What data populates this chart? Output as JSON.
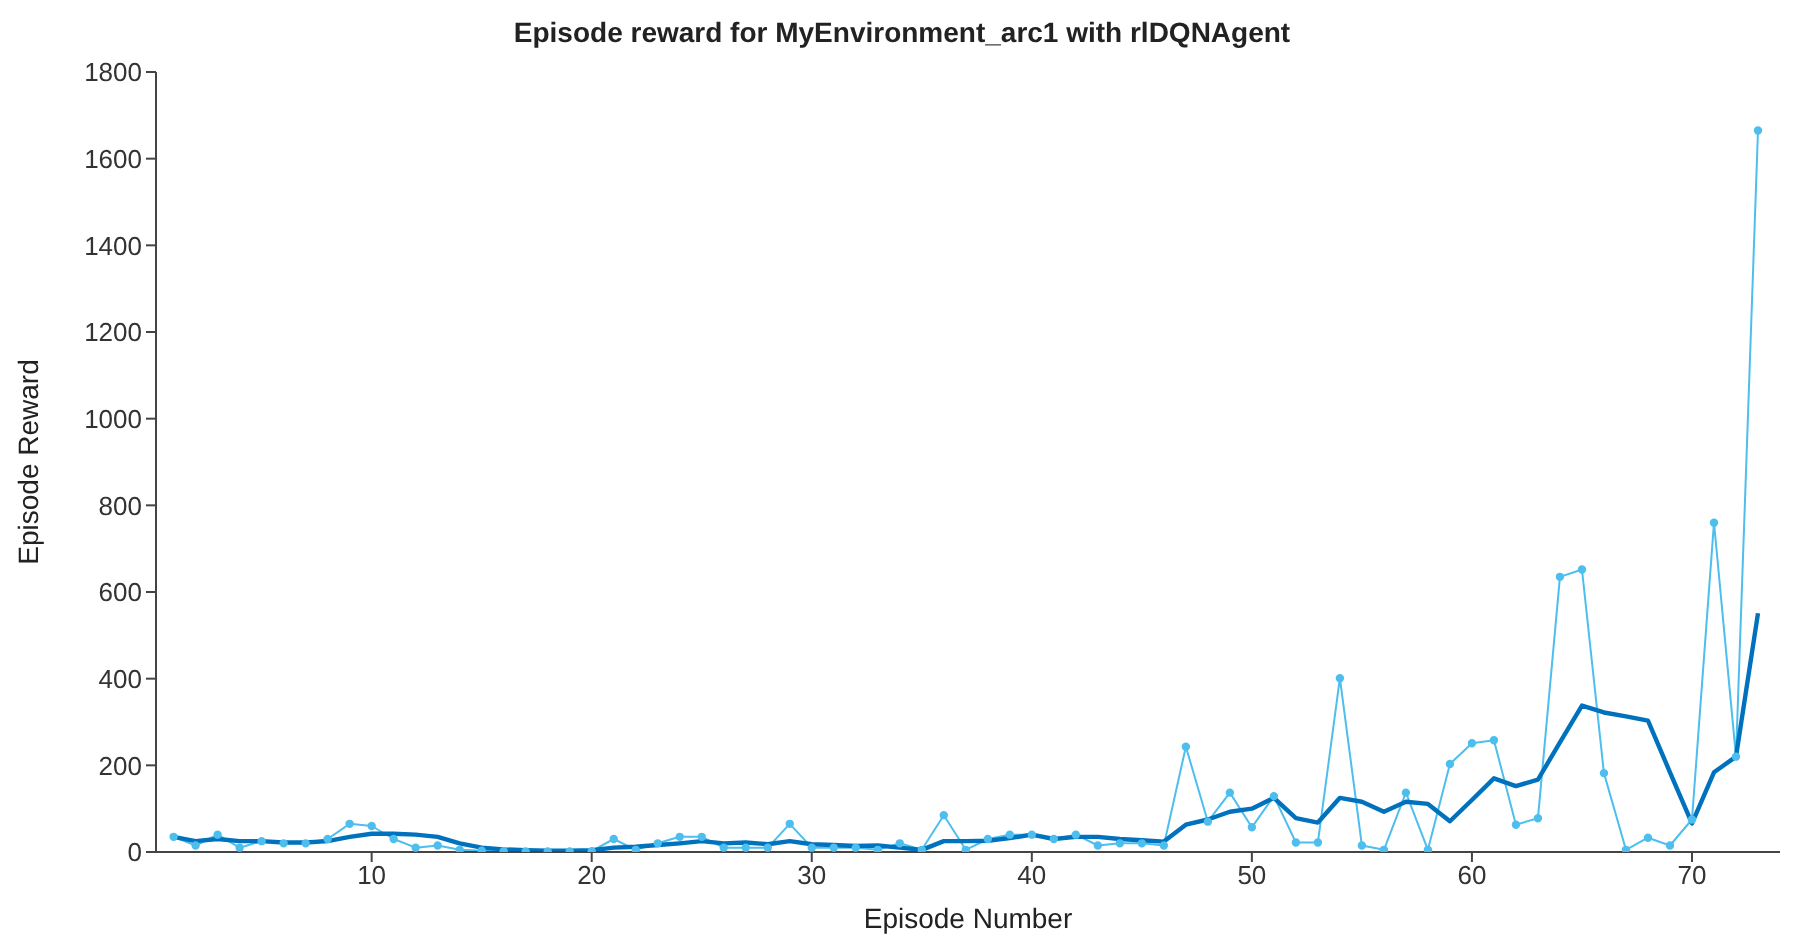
{
  "chart_data": {
    "type": "line",
    "title": "Episode reward for MyEnvironment_arc1 with rlDQNAgent",
    "xlabel": "Episode Number",
    "ylabel": "Episode Reward",
    "x": [
      1,
      2,
      3,
      4,
      5,
      6,
      7,
      8,
      9,
      10,
      11,
      12,
      13,
      14,
      15,
      16,
      17,
      18,
      19,
      20,
      21,
      22,
      23,
      24,
      25,
      26,
      27,
      28,
      29,
      30,
      31,
      32,
      33,
      34,
      35,
      36,
      37,
      38,
      39,
      40,
      41,
      42,
      43,
      44,
      45,
      46,
      47,
      48,
      49,
      50,
      51,
      52,
      53,
      54,
      55,
      56,
      57,
      58,
      59,
      60,
      61,
      62,
      63,
      64,
      65,
      66,
      67,
      68,
      69,
      70,
      71,
      72,
      73
    ],
    "series": [
      {
        "color": "#4dbeee",
        "marker": "circle",
        "values": [
          35,
          15,
          40,
          10,
          25,
          20,
          20,
          30,
          65,
          60,
          30,
          10,
          15,
          5,
          3,
          2,
          1,
          1,
          1,
          2,
          30,
          5,
          20,
          35,
          35,
          10,
          10,
          10,
          65,
          10,
          10,
          10,
          5,
          20,
          5,
          85,
          5,
          30,
          40,
          40,
          30,
          40,
          15,
          20,
          20,
          15,
          243,
          70,
          137,
          57,
          129,
          22,
          22,
          401,
          15,
          5,
          137,
          5,
          203,
          251,
          258,
          63,
          78,
          635,
          652,
          182,
          5,
          33,
          15,
          75,
          760,
          220,
          1665
        ]
      },
      {
        "color": "#0072bd",
        "marker": "none",
        "values": [
          35,
          25,
          30,
          25,
          25,
          22,
          22,
          25,
          35,
          42,
          42,
          40,
          35,
          20,
          10,
          6,
          4,
          3,
          3,
          4,
          10,
          12,
          16,
          20,
          25,
          20,
          22,
          18,
          25,
          18,
          16,
          14,
          15,
          10,
          5,
          25,
          25,
          26,
          32,
          40,
          30,
          35,
          35,
          30,
          27,
          24,
          63,
          75,
          93,
          100,
          125,
          78,
          68,
          125,
          116,
          93,
          116,
          111,
          71,
          120,
          170,
          152,
          167,
          253,
          338,
          322,
          313,
          303,
          184,
          66,
          184,
          220,
          551
        ]
      }
    ],
    "xlim": [
      0.2,
      74
    ],
    "xticks": [
      10,
      20,
      30,
      40,
      50,
      60,
      70
    ],
    "ylim": [
      0,
      1800
    ],
    "yticks": [
      0,
      200,
      400,
      600,
      800,
      1000,
      1200,
      1400,
      1600,
      1800
    ],
    "grid": false,
    "legend": false,
    "line_style": "solid"
  }
}
